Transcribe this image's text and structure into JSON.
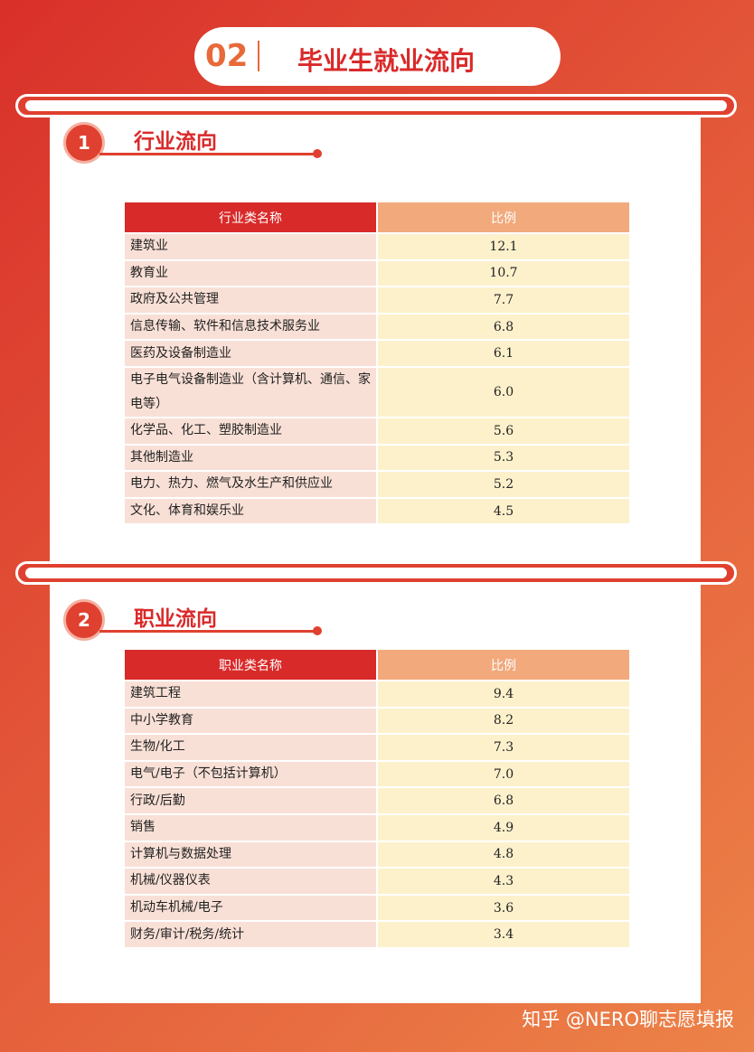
{
  "header": {
    "number": "02",
    "title": "毕业生就业流向"
  },
  "sections": [
    {
      "number": "1",
      "title": "行业流向",
      "table": {
        "columns": [
          "行业类名称",
          "比例"
        ],
        "rows": [
          [
            "建筑业",
            "12.1"
          ],
          [
            "教育业",
            "10.7"
          ],
          [
            "政府及公共管理",
            "7.7"
          ],
          [
            "信息传输、软件和信息技术服务业",
            "6.8"
          ],
          [
            "医药及设备制造业",
            "6.1"
          ],
          [
            "电子电气设备制造业（含计算机、通信、家电等）",
            "6.0"
          ],
          [
            "化学品、化工、塑胶制造业",
            "5.6"
          ],
          [
            "其他制造业",
            "5.3"
          ],
          [
            "电力、热力、燃气及水生产和供应业",
            "5.2"
          ],
          [
            "文化、体育和娱乐业",
            "4.5"
          ]
        ]
      }
    },
    {
      "number": "2",
      "title": "职业流向",
      "table": {
        "columns": [
          "职业类名称",
          "比例"
        ],
        "rows": [
          [
            "建筑工程",
            "9.4"
          ],
          [
            "中小学教育",
            "8.2"
          ],
          [
            "生物/化工",
            "7.3"
          ],
          [
            "电气/电子（不包括计算机）",
            "7.0"
          ],
          [
            "行政/后勤",
            "6.8"
          ],
          [
            "销售",
            "4.9"
          ],
          [
            "计算机与数据处理",
            "4.8"
          ],
          [
            "机械/仪器仪表",
            "4.3"
          ],
          [
            "机动车机械/电子",
            "3.6"
          ],
          [
            "财务/审计/税务/统计",
            "3.4"
          ]
        ]
      }
    }
  ],
  "watermark": "知乎 @NERO聊志愿填报"
}
